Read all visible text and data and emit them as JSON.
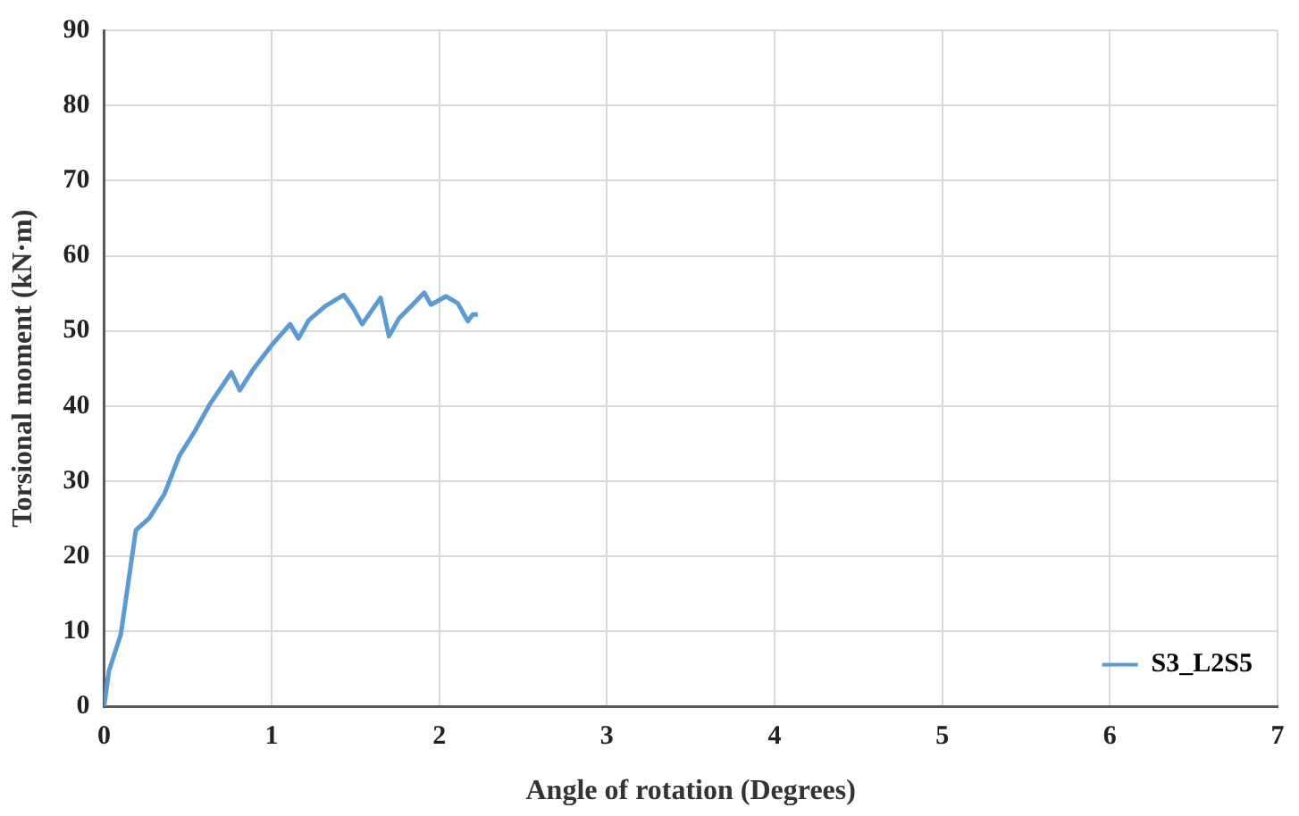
{
  "chart_data": {
    "type": "line",
    "xlabel": "Angle of rotation (Degrees)",
    "ylabel": "Torsional moment (kN·m)",
    "xlim": [
      0,
      7
    ],
    "xticks": [
      0,
      1,
      2,
      3,
      4,
      5,
      6,
      7
    ],
    "ylim": [
      0,
      90
    ],
    "yticks": [
      0,
      10,
      20,
      30,
      40,
      50,
      60,
      70,
      80,
      90
    ],
    "grid": true,
    "legend": "bottom right",
    "marker": "none",
    "line_style": "solid",
    "series": [
      {
        "name": "S3_L2S5",
        "color": "#5b9bd5",
        "x": [
          0,
          0.03,
          0.1,
          0.19,
          0.27,
          0.36,
          0.45,
          0.54,
          0.63,
          0.76,
          0.81,
          0.89,
          1.0,
          1.11,
          1.16,
          1.22,
          1.32,
          1.43,
          1.49,
          1.54,
          1.65,
          1.7,
          1.76,
          1.85,
          1.91,
          1.95,
          2.04,
          2.11,
          2.17,
          2.2,
          2.23
        ],
        "values": [
          0,
          4.8,
          9.6,
          23.5,
          25.1,
          28.3,
          33.4,
          36.6,
          40.2,
          44.5,
          42.1,
          44.9,
          48.1,
          50.9,
          49,
          51.4,
          53.3,
          54.8,
          52.9,
          50.9,
          54.4,
          49.3,
          51.7,
          53.7,
          55.1,
          53.5,
          54.6,
          53.7,
          51.3,
          52.2,
          52.2
        ]
      }
    ]
  }
}
